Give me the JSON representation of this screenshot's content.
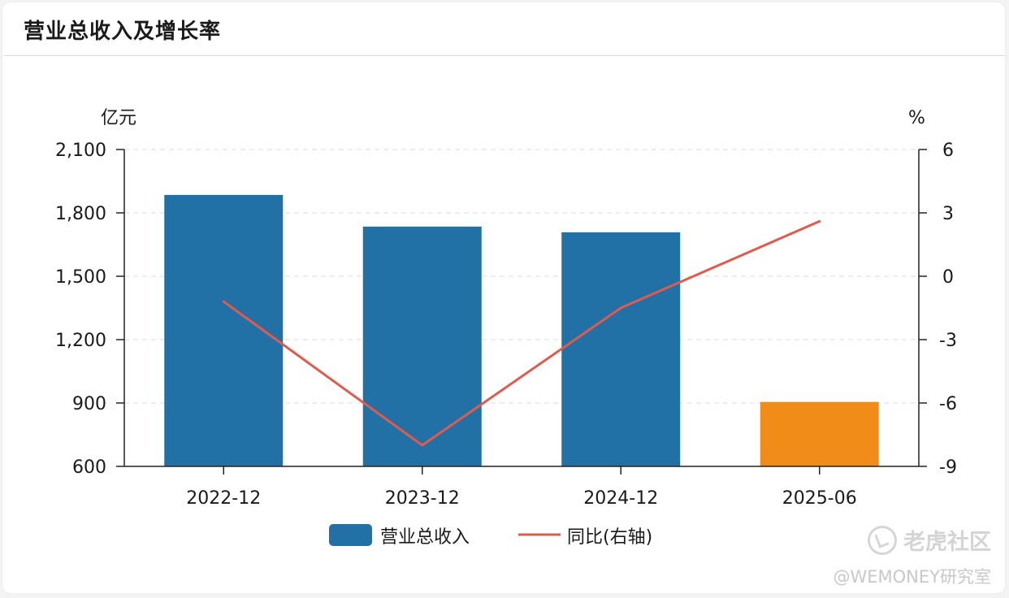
{
  "card": {
    "title": "营业总收入及增长率"
  },
  "chart_data": {
    "type": "bar",
    "categories": [
      "2022-12",
      "2023-12",
      "2024-12",
      "2025-06"
    ],
    "series": [
      {
        "name": "营业总收入",
        "type": "bar",
        "axis": "left",
        "values": [
          1885,
          1735,
          1708,
          905
        ],
        "colors": [
          "#2271a6",
          "#2271a6",
          "#2271a6",
          "#f28c18"
        ]
      },
      {
        "name": "同比(右轴)",
        "type": "line",
        "axis": "right",
        "values": [
          -1.2,
          -8.0,
          -1.5,
          2.6
        ],
        "color": "#e05a4e"
      }
    ],
    "left_axis": {
      "unit": "亿元",
      "ylim": [
        600,
        2100
      ],
      "ticks": [
        600,
        900,
        1200,
        1500,
        1800,
        2100
      ],
      "tick_labels": [
        "600",
        "900",
        "1,200",
        "1,500",
        "1,800",
        "2,100"
      ]
    },
    "right_axis": {
      "unit": "%",
      "ylim": [
        -9,
        6
      ],
      "ticks": [
        -9,
        -6,
        -3,
        0,
        3,
        6
      ],
      "tick_labels": [
        "-9",
        "-6",
        "-3",
        "0",
        "3",
        "6"
      ]
    },
    "grid": true,
    "legend_position": "bottom-center"
  },
  "legend": {
    "bar_label": "营业总收入",
    "line_label": "同比(右轴)"
  },
  "watermark": {
    "brand": "老虎社区",
    "handle": "@WEMONEY研究室",
    "icon": "tiger-community-icon"
  }
}
